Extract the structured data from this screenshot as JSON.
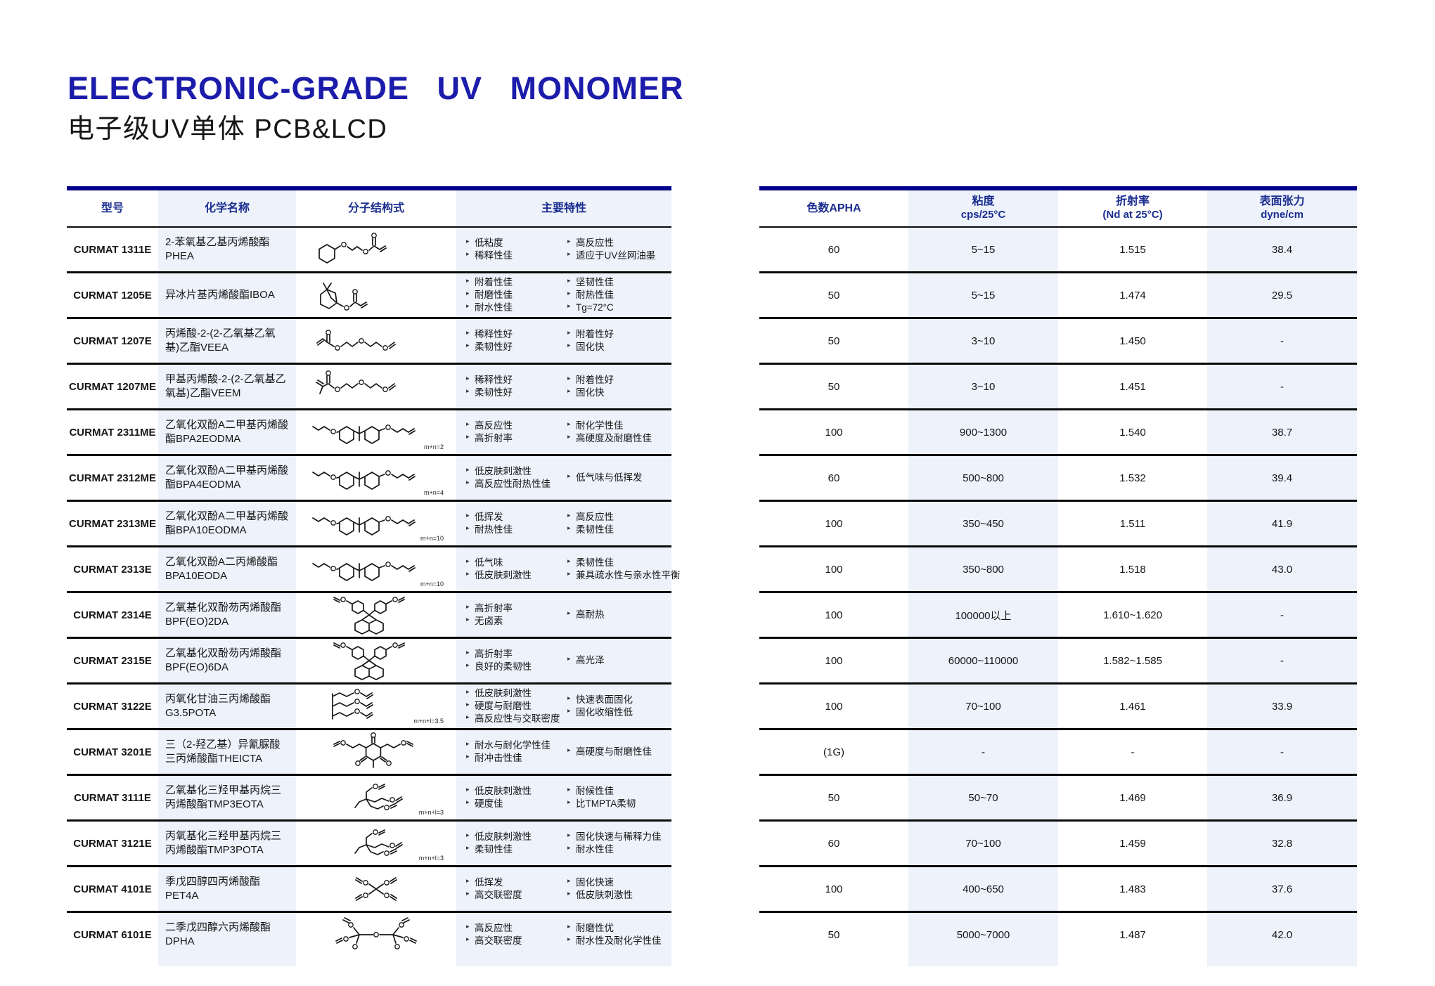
{
  "page": {
    "title": "ELECTRONIC-GRADE UV MONOMER",
    "subtitle": "电子级UV单体 PCB&LCD"
  },
  "colors": {
    "title_blue": "#1c1cab",
    "header_text_blue": "#1b2d8f",
    "top_bar_blue": "#00008b",
    "column_shade": "#edf2fb"
  },
  "monomer_table": {
    "headers": [
      "型号",
      "化学名称",
      "分子结构式",
      "主要特性"
    ],
    "rows": [
      {
        "model": "CURMAT 1311E",
        "chemical_name": "2-苯氧基乙基丙烯酸酯PHEA",
        "structure": "phenoxyethyl-acrylate",
        "structure_label": "",
        "features_left": [
          "低粘度",
          "稀释性佳"
        ],
        "features_right": [
          "高反应性",
          "适应于UV丝网油墨"
        ]
      },
      {
        "model": "CURMAT 1205E",
        "chemical_name": "异冰片基丙烯酸酯IBOA",
        "structure": "isobornyl-acrylate",
        "structure_label": "",
        "features_left": [
          "附着性佳",
          "耐磨性佳",
          "耐水性佳"
        ],
        "features_right": [
          "坚韧性佳",
          "耐热性佳",
          "Tg=72°C"
        ]
      },
      {
        "model": "CURMAT 1207E",
        "chemical_name": "丙烯酸-2-(2-乙氧基乙氧基)乙酯VEEA",
        "structure": "veea-chain",
        "structure_label": "",
        "features_left": [
          "稀释性好",
          "柔韧性好"
        ],
        "features_right": [
          "附着性好",
          "固化快"
        ]
      },
      {
        "model": "CURMAT 1207ME",
        "chemical_name": "甲基丙烯酸-2-(2-乙氧基乙氧基)乙酯VEEM",
        "structure": "veem-chain",
        "structure_label": "",
        "features_left": [
          "稀释性好",
          "柔韧性好"
        ],
        "features_right": [
          "附着性好",
          "固化快"
        ]
      },
      {
        "model": "CURMAT 2311ME",
        "chemical_name": "乙氧化双酚A二甲基丙烯酸酯BPA2EODMA",
        "structure": "bisphenol-a",
        "structure_label": "m+n=2",
        "features_left": [
          "高反应性",
          "高折射率"
        ],
        "features_right": [
          "耐化学性佳",
          "高硬度及耐磨性佳"
        ]
      },
      {
        "model": "CURMAT 2312ME",
        "chemical_name": "乙氧化双酚A二甲基丙烯酸酯BPA4EODMA",
        "structure": "bisphenol-a",
        "structure_label": "m+n=4",
        "features_left": [
          "低皮肤刺激性",
          "高反应性耐热性佳"
        ],
        "features_right": [
          "低气味与低挥发"
        ]
      },
      {
        "model": "CURMAT 2313ME",
        "chemical_name": "乙氧化双酚A二甲基丙烯酸酯BPA10EODMA",
        "structure": "bisphenol-a",
        "structure_label": "m+n=10",
        "features_left": [
          "低挥发",
          "耐热性佳"
        ],
        "features_right": [
          "高反应性",
          "柔韧性佳"
        ]
      },
      {
        "model": "CURMAT 2313E",
        "chemical_name": "乙氧化双酚A二丙烯酸酯BPA10EODA",
        "structure": "bisphenol-a",
        "structure_label": "m+n=10",
        "features_left": [
          "低气味",
          "低皮肤刺激性"
        ],
        "features_right": [
          "柔韧性佳",
          "兼具疏水性与亲水性平衡"
        ]
      },
      {
        "model": "CURMAT 2314E",
        "chemical_name": "乙氧基化双酚芴丙烯酸酯BPF(EO)2DA",
        "structure": "bisphenol-fluorene",
        "structure_label": "",
        "features_left": [
          "高折射率",
          "无卤素"
        ],
        "features_right": [
          "高耐热"
        ]
      },
      {
        "model": "CURMAT 2315E",
        "chemical_name": "乙氧基化双酚芴丙烯酸酯BPF(EO)6DA",
        "structure": "bisphenol-fluorene",
        "structure_label": "",
        "features_left": [
          "高折射率",
          "良好的柔韧性"
        ],
        "features_right": [
          "高光泽"
        ]
      },
      {
        "model": "CURMAT 3122E",
        "chemical_name": "丙氧化甘油三丙烯酸酯G3.5POTA",
        "structure": "glycerol-triacrylate",
        "structure_label": "m+n+l=3.5",
        "features_left": [
          "低皮肤刺激性",
          "硬度与耐磨性",
          "高反应性与交联密度"
        ],
        "features_right": [
          "快速表面固化",
          "固化收缩性低"
        ]
      },
      {
        "model": "CURMAT 3201E",
        "chemical_name": "三（2-羟乙基）异氰脲酸三丙烯酸酯THEICTA",
        "structure": "isocyanurate-triacrylate",
        "structure_label": "",
        "features_left": [
          "耐水与耐化学性佳",
          "耐冲击性佳"
        ],
        "features_right": [
          "高硬度与耐磨性佳"
        ]
      },
      {
        "model": "CURMAT 3111E",
        "chemical_name": "乙氧基化三羟甲基丙烷三丙烯酸酯TMP3EOTA",
        "structure": "tmp-triacrylate",
        "structure_label": "m+n+l=3",
        "features_left": [
          "低皮肤刺激性",
          "硬度佳"
        ],
        "features_right": [
          "耐候性佳",
          "比TMPTA柔韧"
        ]
      },
      {
        "model": "CURMAT 3121E",
        "chemical_name": "丙氧基化三羟甲基丙烷三丙烯酸酯TMP3POTA",
        "structure": "tmp-triacrylate",
        "structure_label": "m+n+l=3",
        "features_left": [
          "低皮肤刺激性",
          "柔韧性佳"
        ],
        "features_right": [
          "固化快速与稀释力佳",
          "耐水性佳"
        ]
      },
      {
        "model": "CURMAT 4101E",
        "chemical_name": "季戊四醇四丙烯酸酯PET4A",
        "structure": "pentaerythritol-tetraacrylate",
        "structure_label": "",
        "features_left": [
          "低挥发",
          "高交联密度"
        ],
        "features_right": [
          "固化快速",
          "低皮肤刺激性"
        ]
      },
      {
        "model": "CURMAT 6101E",
        "chemical_name": "二季戊四醇六丙烯酸酯DPHA",
        "structure": "dipentaerythritol-hexaacrylate",
        "structure_label": "",
        "features_left": [
          "高反应性",
          "高交联密度"
        ],
        "features_right": [
          "耐磨性优",
          "耐水性及耐化学性佳"
        ]
      }
    ]
  },
  "properties_table": {
    "headers": [
      {
        "line1": "色数APHA",
        "line2": ""
      },
      {
        "line1": "粘度",
        "line2": "cps/25°C"
      },
      {
        "line1": "折射率",
        "line2": "(Nd at 25°C)"
      },
      {
        "line1": "表面张力",
        "line2": "dyne/cm"
      }
    ],
    "rows": [
      {
        "apha": "60",
        "viscosity": "5~15",
        "refractive_index": "1.515",
        "surface_tension": "38.4"
      },
      {
        "apha": "50",
        "viscosity": "5~15",
        "refractive_index": "1.474",
        "surface_tension": "29.5"
      },
      {
        "apha": "50",
        "viscosity": "3~10",
        "refractive_index": "1.450",
        "surface_tension": "-"
      },
      {
        "apha": "50",
        "viscosity": "3~10",
        "refractive_index": "1.451",
        "surface_tension": "-"
      },
      {
        "apha": "100",
        "viscosity": "900~1300",
        "refractive_index": "1.540",
        "surface_tension": "38.7"
      },
      {
        "apha": "60",
        "viscosity": "500~800",
        "refractive_index": "1.532",
        "surface_tension": "39.4"
      },
      {
        "apha": "100",
        "viscosity": "350~450",
        "refractive_index": "1.511",
        "surface_tension": "41.9"
      },
      {
        "apha": "100",
        "viscosity": "350~800",
        "refractive_index": "1.518",
        "surface_tension": "43.0"
      },
      {
        "apha": "100",
        "viscosity": "100000以上",
        "refractive_index": "1.610~1.620",
        "surface_tension": "-"
      },
      {
        "apha": "100",
        "viscosity": "60000~110000",
        "refractive_index": "1.582~1.585",
        "surface_tension": "-"
      },
      {
        "apha": "100",
        "viscosity": "70~100",
        "refractive_index": "1.461",
        "surface_tension": "33.9"
      },
      {
        "apha": "(1G)",
        "viscosity": "-",
        "refractive_index": "-",
        "surface_tension": "-"
      },
      {
        "apha": "50",
        "viscosity": "50~70",
        "refractive_index": "1.469",
        "surface_tension": "36.9"
      },
      {
        "apha": "60",
        "viscosity": "70~100",
        "refractive_index": "1.459",
        "surface_tension": "32.8"
      },
      {
        "apha": "100",
        "viscosity": "400~650",
        "refractive_index": "1.483",
        "surface_tension": "37.6"
      },
      {
        "apha": "50",
        "viscosity": "5000~7000",
        "refractive_index": "1.487",
        "surface_tension": "42.0"
      }
    ]
  }
}
